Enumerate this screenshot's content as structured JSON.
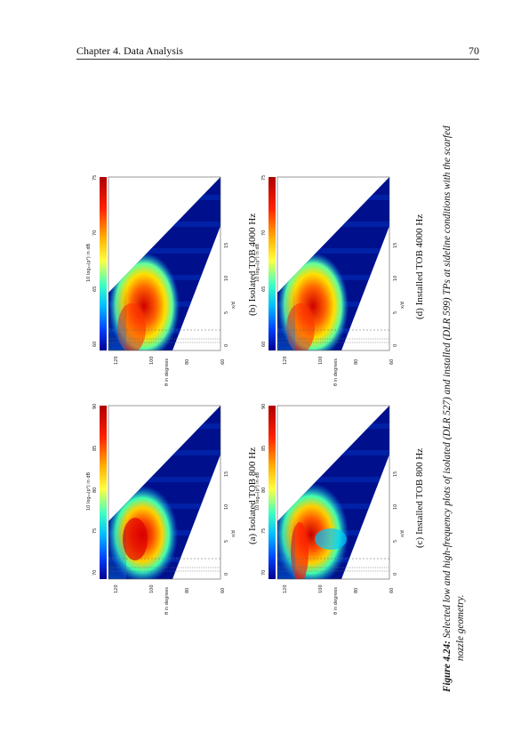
{
  "header": {
    "chapter": "Chapter 4.  Data Analysis",
    "page": "70"
  },
  "figure": {
    "label": "Figure 4.24:",
    "caption_line1": " Selected low and high-frequency plots of isolated (DLR 527) and installed (DLR 599) TPs at sideline conditions with the scarfed",
    "caption_line2": "nozzle geometry.",
    "colors": {
      "low": "#000090",
      "mid": "#00d0ff",
      "high": "#b00000"
    },
    "axes": {
      "x_label": "x/d",
      "y_label": "θ in degrees",
      "cbar_label": "10 log₁₀(p²) in dB",
      "x_ticks": [
        "0",
        "5",
        "10",
        "15"
      ],
      "y_ticks": [
        "120",
        "100",
        "80",
        "60"
      ]
    },
    "panels": [
      {
        "id": "a",
        "caption": "(a) Isolated TOB 800 Hz",
        "cbar_ticks": [
          "90",
          "85",
          "80",
          "75",
          "70"
        ]
      },
      {
        "id": "b",
        "caption": "(b) Isolated TOB 4000 Hz",
        "cbar_ticks": [
          "75",
          "70",
          "65",
          "60"
        ]
      },
      {
        "id": "c",
        "caption": "(c) Installed TOB 800 Hz",
        "cbar_ticks": [
          "90",
          "85",
          "80",
          "75",
          "70"
        ]
      },
      {
        "id": "d",
        "caption": "(d) Installed TOB 4000 Hz",
        "cbar_ticks": [
          "75",
          "70",
          "65",
          "60"
        ]
      }
    ]
  }
}
